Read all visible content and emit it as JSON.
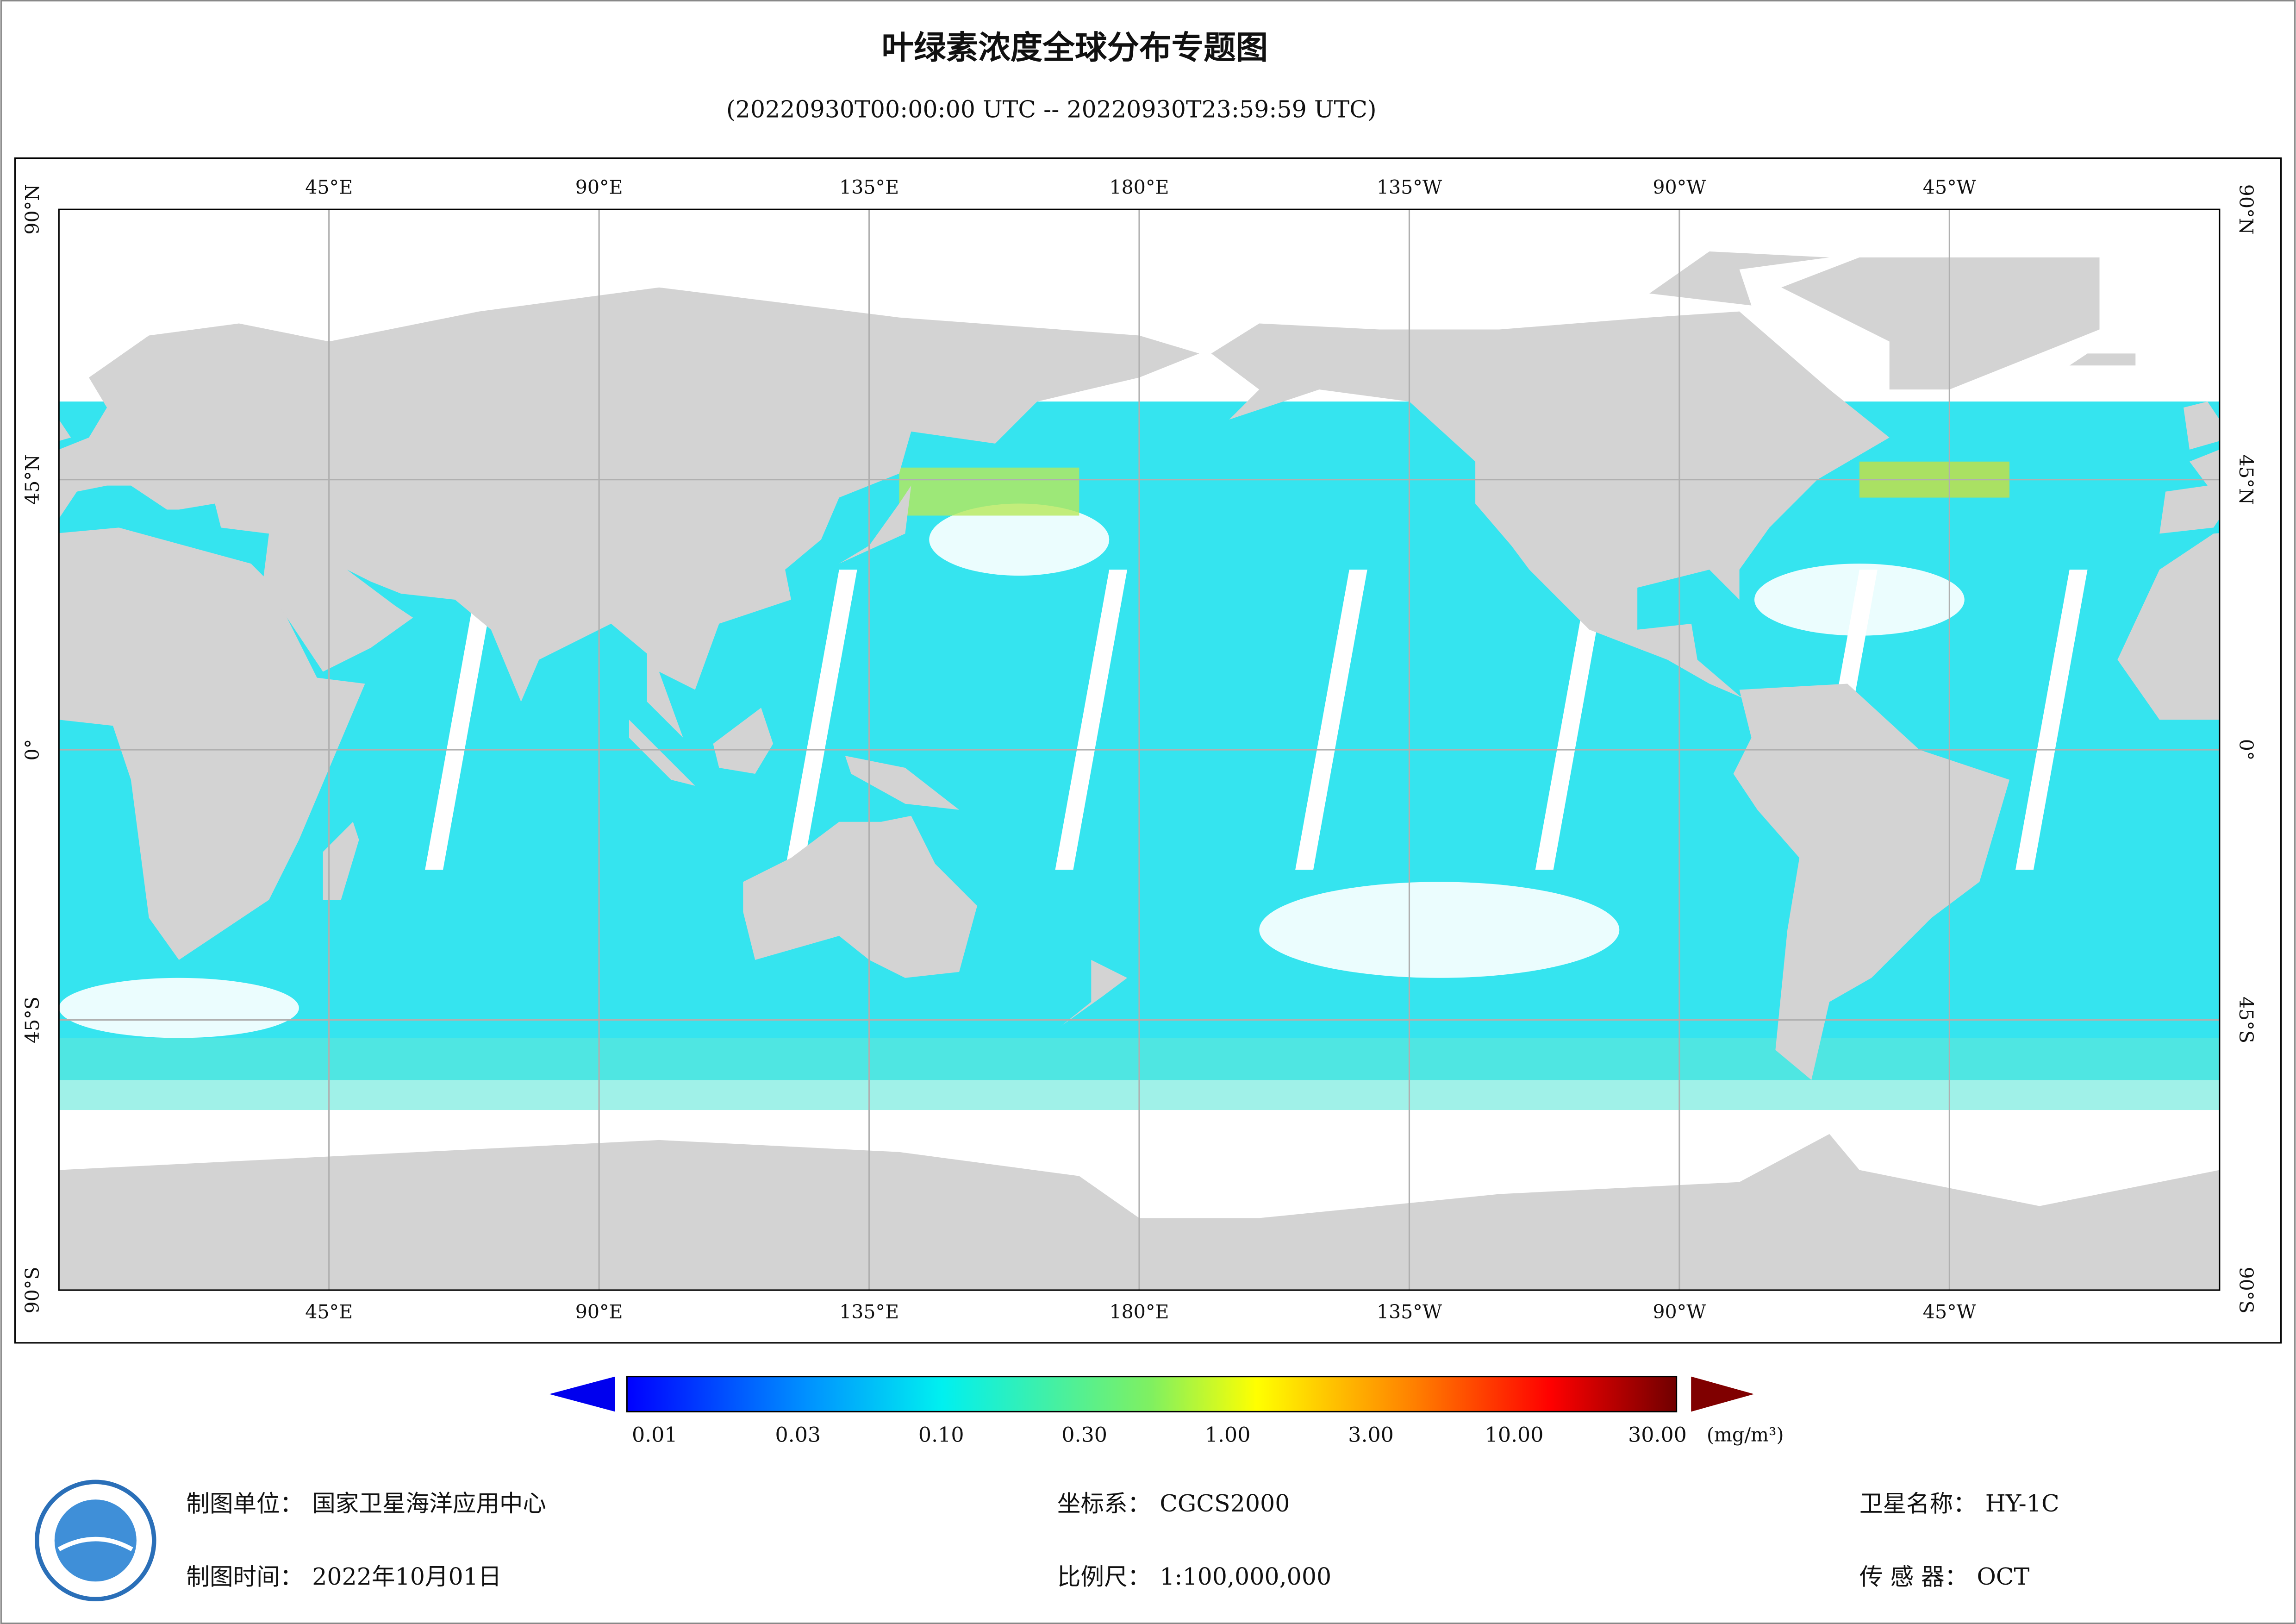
{
  "header": {
    "title": "叶绿素浓度全球分布专题图",
    "subtitle": "(20220930T00:00:00 UTC -- 20220930T23:59:59 UTC)"
  },
  "map": {
    "lon_labels": [
      "45°E",
      "90°E",
      "135°E",
      "180°E",
      "135°W",
      "90°W",
      "45°W"
    ],
    "lat_labels": [
      "90°N",
      "45°N",
      "0°",
      "45°S",
      "90°S"
    ]
  },
  "colorbar": {
    "labels": [
      "0.01",
      "0.03",
      "0.10",
      "0.30",
      "1.00",
      "3.00",
      "10.00",
      "30.00"
    ],
    "unit": "(mg/m³)"
  },
  "footer": [
    {
      "label": "制图单位：",
      "value": "国家卫星海洋应用中心"
    },
    {
      "label": "制图时间：",
      "value": "2022年10月01日"
    },
    {
      "label": "坐标系：",
      "value": "CGCS2000"
    },
    {
      "label": "比例尺：",
      "value": "1:100,000,000"
    },
    {
      "label": "卫星名称：",
      "value": "HY-1C"
    },
    {
      "label": "传 感 器：",
      "value": "OCT"
    }
  ]
}
